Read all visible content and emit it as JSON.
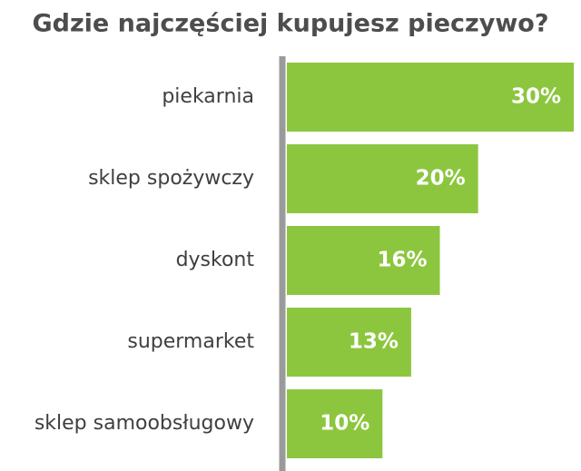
{
  "chart_data": {
    "type": "bar",
    "orientation": "horizontal",
    "title": "Gdzie najczęściej kupujesz pieczywo?",
    "categories": [
      "piekarnia",
      "sklep spożywczy",
      "dyskont",
      "supermarket",
      "sklep samoobsługowy"
    ],
    "values": [
      30,
      20,
      16,
      13,
      10
    ],
    "value_labels": [
      "30%",
      "20%",
      "16%",
      "13%",
      "10%"
    ],
    "color": "#8cc63e"
  }
}
